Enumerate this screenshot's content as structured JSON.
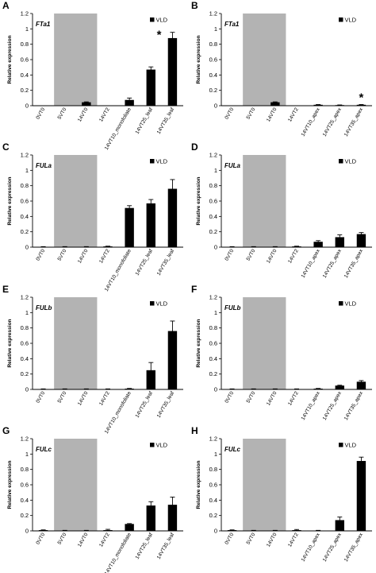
{
  "chart_data": [
    {
      "type": "bar",
      "panel": "A",
      "gene": "FTa1",
      "categories": [
        "0VT0",
        "5VT0",
        "14VT0",
        "14VT2",
        "14VT10_monofoliate",
        "14VT25_leaf",
        "14VT35_leaf"
      ],
      "series": [
        {
          "name": "VLD",
          "values": [
            0,
            0,
            0.045,
            0,
            0.075,
            0.47,
            0.88
          ],
          "errors": [
            0,
            0,
            0.005,
            0,
            0.025,
            0.035,
            0.075
          ]
        }
      ],
      "ylabel": "Relative expression",
      "ylim": [
        0,
        1.2
      ],
      "yticks": [
        "0",
        "0.2",
        "0.4",
        "0.6",
        "0.8",
        "1",
        "1.2"
      ],
      "shaded_categories": [
        1,
        2
      ],
      "annotations": [
        {
          "category": 6,
          "text": "*"
        }
      ]
    },
    {
      "type": "bar",
      "panel": "B",
      "gene": "FTa1",
      "categories": [
        "0VT0",
        "5VT0",
        "14VT0",
        "14VT2",
        "14VT10_apex",
        "14VT25_apex",
        "14VT35_apex"
      ],
      "series": [
        {
          "name": "VLD",
          "values": [
            0,
            0,
            0.045,
            0,
            0.012,
            0.008,
            0.012
          ],
          "errors": [
            0,
            0,
            0.005,
            0,
            0.003,
            0.002,
            0.003
          ]
        }
      ],
      "ylabel": "Relative expression",
      "ylim": [
        0,
        1.2
      ],
      "yticks": [
        "0",
        "0.2",
        "0.4",
        "0.6",
        "0.8",
        "1",
        "1.2"
      ],
      "shaded_categories": [
        1,
        2
      ],
      "annotations": [
        {
          "category": 6,
          "text": "*"
        }
      ]
    },
    {
      "type": "bar",
      "panel": "C",
      "gene": "FULa",
      "categories": [
        "0VT0",
        "5VT0",
        "14VT0",
        "14VT2",
        "14VT10_monofoliate",
        "14VT25_leaf",
        "14VT35_leaf"
      ],
      "series": [
        {
          "name": "VLD",
          "values": [
            0.005,
            0.005,
            0.005,
            0.01,
            0.51,
            0.57,
            0.76
          ],
          "errors": [
            0.002,
            0.002,
            0.002,
            0.003,
            0.03,
            0.05,
            0.12
          ]
        }
      ],
      "ylabel": "Relative expression",
      "ylim": [
        0,
        1.2
      ],
      "yticks": [
        "0",
        "0.2",
        "0.4",
        "0.6",
        "0.8",
        "1",
        "1.2"
      ],
      "shaded_categories": [
        1,
        2
      ],
      "annotations": []
    },
    {
      "type": "bar",
      "panel": "D",
      "gene": "FULa",
      "categories": [
        "0VT0",
        "5VT0",
        "14VT0",
        "14VT2",
        "14VT10_apex",
        "14VT25_apex",
        "14VT35_apex"
      ],
      "series": [
        {
          "name": "VLD",
          "values": [
            0.005,
            0.005,
            0.005,
            0.01,
            0.07,
            0.13,
            0.17
          ],
          "errors": [
            0.002,
            0.002,
            0.002,
            0.003,
            0.015,
            0.03,
            0.02
          ]
        }
      ],
      "ylabel": "Relative expression",
      "ylim": [
        0,
        1.2
      ],
      "yticks": [
        "0",
        "0.2",
        "0.4",
        "0.6",
        "0.8",
        "1",
        "1.2"
      ],
      "shaded_categories": [
        1,
        2
      ],
      "annotations": []
    },
    {
      "type": "bar",
      "panel": "E",
      "gene": "FULb",
      "categories": [
        "0VT0",
        "5VT0",
        "14VT0",
        "14VT2",
        "14VT10_monofoliate",
        "14VT25_leaf",
        "14VT35_leaf"
      ],
      "series": [
        {
          "name": "VLD",
          "values": [
            0.005,
            0.005,
            0.005,
            0.005,
            0.01,
            0.25,
            0.76
          ],
          "errors": [
            0.002,
            0.002,
            0.002,
            0.002,
            0.003,
            0.1,
            0.13
          ]
        }
      ],
      "ylabel": "Relative expression",
      "ylim": [
        0,
        1.2
      ],
      "yticks": [
        "0",
        "0.2",
        "0.4",
        "0.6",
        "0.8",
        "1",
        "1.2"
      ],
      "shaded_categories": [
        1,
        2
      ],
      "annotations": []
    },
    {
      "type": "bar",
      "panel": "F",
      "gene": "FULb",
      "categories": [
        "0VT0",
        "5VT0",
        "14VT0",
        "14VT2",
        "14VT10_apex",
        "14VT25_apex",
        "14VT35_apex"
      ],
      "series": [
        {
          "name": "VLD",
          "values": [
            0.005,
            0.005,
            0.005,
            0.005,
            0.01,
            0.05,
            0.1
          ],
          "errors": [
            0.002,
            0.002,
            0.002,
            0.002,
            0.003,
            0.005,
            0.015
          ]
        }
      ],
      "ylabel": "Relative expression",
      "ylim": [
        0,
        1.2
      ],
      "yticks": [
        "0",
        "0.2",
        "0.4",
        "0.6",
        "0.8",
        "1",
        "1.2"
      ],
      "shaded_categories": [
        1,
        2
      ],
      "annotations": []
    },
    {
      "type": "bar",
      "panel": "G",
      "gene": "FULc",
      "categories": [
        "0VT0",
        "5VT0",
        "14VT0",
        "14VT2",
        "14VT10_monofoliate",
        "14VT25_leaf",
        "14VT35_leaf"
      ],
      "series": [
        {
          "name": "VLD",
          "values": [
            0.01,
            0.005,
            0.005,
            0.01,
            0.09,
            0.33,
            0.34
          ],
          "errors": [
            0.003,
            0.002,
            0.002,
            0.01,
            0.005,
            0.05,
            0.1
          ]
        }
      ],
      "ylabel": "Relative expression",
      "ylim": [
        0,
        1.2
      ],
      "yticks": [
        "0",
        "0.2",
        "0.4",
        "0.6",
        "0.8",
        "1",
        "1.2"
      ],
      "shaded_categories": [
        1,
        2
      ],
      "annotations": []
    },
    {
      "type": "bar",
      "panel": "H",
      "gene": "FULc",
      "categories": [
        "0VT0",
        "5VT0",
        "14VT0",
        "14VT2",
        "14VT10_apex",
        "14VT25_apex",
        "14VT35_apex"
      ],
      "series": [
        {
          "name": "VLD",
          "values": [
            0.01,
            0.005,
            0.005,
            0.01,
            0.005,
            0.14,
            0.91
          ],
          "errors": [
            0.003,
            0.002,
            0.002,
            0.008,
            0.002,
            0.04,
            0.05
          ]
        }
      ],
      "ylabel": "Relative expression",
      "ylim": [
        0,
        1.2
      ],
      "yticks": [
        "0",
        "0.2",
        "0.4",
        "0.6",
        "0.8",
        "1",
        "1.2"
      ],
      "shaded_categories": [
        1,
        2
      ],
      "annotations": []
    }
  ],
  "colors": {
    "bar": "#000000",
    "shade": "#b3b3b3",
    "axis": "#000000"
  }
}
